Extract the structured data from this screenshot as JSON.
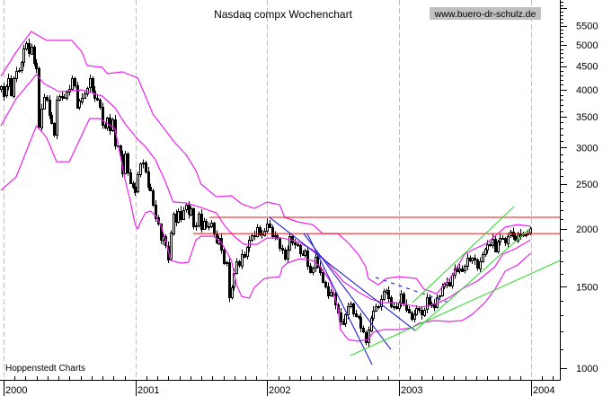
{
  "header": {
    "title": "Nasdaq compx Wochenchart",
    "source_url": "www.buero-dr-schulz.de"
  },
  "footer": {
    "credit": "Hoppenstedt Charts"
  },
  "chart_data": {
    "type": "candlestick",
    "title": "Nasdaq compx Wochenchart",
    "period": "weekly",
    "xlabel": "",
    "ylabel": "",
    "y_scale": "log",
    "ylim": [
      944,
      6254
    ],
    "xlim_weeks": [
      -0.355,
      220.6
    ],
    "x_tick_labels": [
      "2000",
      "2001",
      "2002",
      "2003",
      "2004"
    ],
    "x_tick_weeks": [
      1.06,
      53.1,
      105.15,
      157.2,
      209.24
    ],
    "months_per_year": 12,
    "y_tick_labels": [
      1000,
      1500,
      2000,
      2500,
      3000,
      3500,
      4000,
      4500,
      5000,
      5500
    ],
    "y_major_ticks": [
      1000,
      1500,
      2000,
      2500,
      3000,
      3500,
      4000,
      4500,
      5000,
      5500,
      6000
    ],
    "y_minor_tick_step": 100,
    "grid": {
      "vertical_year_lines": true,
      "horizontal": false,
      "color": "#c0c0c0"
    },
    "colors": {
      "up_body": "#ffffff",
      "down_body": "#000000",
      "outline": "#000000"
    },
    "close": [
      4069,
      3882,
      4064,
      4235,
      3887,
      4244,
      4395,
      4411,
      4590,
      4914,
      5048,
      4798,
      4963,
      4573,
      4446,
      3321,
      3643,
      3860,
      3816,
      3529,
      3390,
      3205,
      3813,
      3874,
      3860,
      3845,
      3966,
      4023,
      4246,
      4095,
      3663,
      3787,
      3849,
      3930,
      4042,
      4234,
      3979,
      3835,
      3803,
      3673,
      3361,
      3316,
      3483,
      3278,
      3451,
      3028,
      3027,
      2904,
      2645,
      2917,
      2654,
      2517,
      2471,
      2407,
      2626,
      2770,
      2781,
      2660,
      2470,
      2425,
      2262,
      2117,
      2052,
      1890,
      1928,
      1840,
      1720,
      1961,
      2163,
      2075,
      2192,
      2107,
      2199,
      2252,
      2149,
      2215,
      2028,
      2034,
      2160,
      2004,
      2084,
      2029,
      2029,
      2066,
      1956,
      1867,
      1916,
      1805,
      1687,
      1695,
      1423,
      1498,
      1605,
      1703,
      1671,
      1768,
      1745,
      1828,
      1898,
      1941,
      1930,
      2021,
      1953,
      1945,
      1987,
      2059,
      2022,
      1930,
      1937,
      1911,
      1818,
      1805,
      1724,
      1802,
      1929,
      1868,
      1851,
      1845,
      1770,
      1756,
      1796,
      1663,
      1613,
      1652,
      1741,
      1661,
      1615,
      1535,
      1504,
      1440,
      1463,
      1448,
      1373,
      1319,
      1262,
      1247,
      1306,
      1361,
      1380,
      1315,
      1295,
      1291,
      1221,
      1199,
      1139,
      1210,
      1287,
      1331,
      1360,
      1359,
      1411,
      1468,
      1479,
      1422,
      1362,
      1363,
      1348,
      1387,
      1448,
      1376,
      1342,
      1321,
      1282,
      1310,
      1349,
      1337,
      1305,
      1340,
      1422,
      1369,
      1383,
      1358,
      1425,
      1434,
      1502,
      1520,
      1538,
      1510,
      1596,
      1646,
      1627,
      1644,
      1625,
      1663,
      1733,
      1708,
      1731,
      1715,
      1644,
      1702,
      1765,
      1810,
      1858,
      1848,
      1905,
      1792,
      1880,
      1915,
      1912,
      1866,
      1932,
      1970,
      1930,
      1893,
      1960,
      1937,
      1949,
      1951,
      1960,
      2006
    ],
    "bollinger_bands": {
      "color": "#ee22ee",
      "upper": [
        [
          0,
          4277
        ],
        [
          6,
          4826
        ],
        [
          12,
          5348
        ],
        [
          18,
          5114
        ],
        [
          28,
          5114
        ],
        [
          32,
          4826
        ],
        [
          34,
          4512
        ],
        [
          40,
          4472
        ],
        [
          42,
          4334
        ],
        [
          48,
          4373
        ],
        [
          54,
          4240
        ],
        [
          56,
          3998
        ],
        [
          60,
          3544
        ],
        [
          63,
          3375
        ],
        [
          69,
          3058
        ],
        [
          73,
          2899
        ],
        [
          77,
          2674
        ],
        [
          79,
          2501
        ],
        [
          85,
          2349
        ],
        [
          91,
          2360
        ],
        [
          95,
          2266
        ],
        [
          100,
          2216
        ],
        [
          105,
          2287
        ],
        [
          110,
          2256
        ],
        [
          112,
          2120
        ],
        [
          117,
          2073
        ],
        [
          123,
          2045
        ],
        [
          127,
          1955
        ],
        [
          133,
          1955
        ],
        [
          137,
          1870
        ],
        [
          141,
          1764
        ],
        [
          144,
          1658
        ],
        [
          145,
          1564
        ],
        [
          149,
          1515
        ],
        [
          152,
          1564
        ],
        [
          157,
          1578
        ],
        [
          164,
          1564
        ],
        [
          167,
          1482
        ],
        [
          172,
          1449
        ],
        [
          174,
          1495
        ],
        [
          178,
          1585
        ],
        [
          183,
          1764
        ],
        [
          187,
          1813
        ],
        [
          191,
          1853
        ],
        [
          195,
          1929
        ],
        [
          199,
          2018
        ],
        [
          204,
          2045
        ],
        [
          209,
          2027
        ]
      ],
      "middle": [
        [
          0,
          3344
        ],
        [
          6,
          3824
        ],
        [
          14,
          4315
        ],
        [
          17,
          4126
        ],
        [
          23,
          3963
        ],
        [
          32,
          3998
        ],
        [
          40,
          3876
        ],
        [
          45,
          3658
        ],
        [
          49,
          3375
        ],
        [
          54,
          3127
        ],
        [
          57,
          3017
        ],
        [
          61,
          2821
        ],
        [
          65,
          2524
        ],
        [
          68,
          2287
        ],
        [
          73,
          2277
        ],
        [
          79,
          2226
        ],
        [
          85,
          2167
        ],
        [
          88,
          2045
        ],
        [
          92,
          1929
        ],
        [
          96,
          1853
        ],
        [
          101,
          1853
        ],
        [
          105,
          1912
        ],
        [
          111,
          1912
        ],
        [
          116,
          1887
        ],
        [
          119,
          1853
        ],
        [
          123,
          1805
        ],
        [
          127,
          1733
        ],
        [
          132,
          1614
        ],
        [
          135,
          1543
        ],
        [
          141,
          1462
        ],
        [
          146,
          1411
        ],
        [
          151,
          1386
        ],
        [
          156,
          1386
        ],
        [
          162,
          1367
        ],
        [
          166,
          1355
        ],
        [
          172,
          1380
        ],
        [
          177,
          1423
        ],
        [
          183,
          1495
        ],
        [
          188,
          1543
        ],
        [
          195,
          1658
        ],
        [
          198,
          1764
        ],
        [
          203,
          1813
        ],
        [
          209,
          1895
        ]
      ],
      "lower": [
        [
          0,
          2424
        ],
        [
          6,
          2591
        ],
        [
          14,
          3344
        ],
        [
          18,
          3155
        ],
        [
          22,
          2796
        ],
        [
          27,
          2796
        ],
        [
          35,
          3466
        ],
        [
          39,
          3466
        ],
        [
          45,
          3299
        ],
        [
          49,
          2557
        ],
        [
          51,
          2307
        ],
        [
          53,
          2045
        ],
        [
          54,
          2000
        ],
        [
          55,
          2064
        ],
        [
          57,
          2167
        ],
        [
          59,
          2187
        ],
        [
          61,
          2139
        ],
        [
          63,
          2045
        ],
        [
          65,
          1895
        ],
        [
          67,
          1710
        ],
        [
          71,
          1688
        ],
        [
          74,
          1695
        ],
        [
          77,
          1895
        ],
        [
          79,
          1929
        ],
        [
          84,
          1929
        ],
        [
          87,
          1870
        ],
        [
          91,
          1710
        ],
        [
          93,
          1515
        ],
        [
          95,
          1430
        ],
        [
          98,
          1417
        ],
        [
          100,
          1495
        ],
        [
          104,
          1564
        ],
        [
          110,
          1578
        ],
        [
          111,
          1651
        ],
        [
          113,
          1688
        ],
        [
          118,
          1725
        ],
        [
          123,
          1710
        ],
        [
          126,
          1658
        ],
        [
          130,
          1543
        ],
        [
          133,
          1349
        ],
        [
          134,
          1212
        ],
        [
          137,
          1154
        ],
        [
          141,
          1144
        ],
        [
          145,
          1154
        ],
        [
          147,
          1196
        ],
        [
          151,
          1212
        ],
        [
          157,
          1212
        ],
        [
          162,
          1223
        ],
        [
          165,
          1251
        ],
        [
          171,
          1268
        ],
        [
          177,
          1262
        ],
        [
          182,
          1268
        ],
        [
          186,
          1307
        ],
        [
          191,
          1386
        ],
        [
          195,
          1482
        ],
        [
          199,
          1621
        ],
        [
          204,
          1673
        ],
        [
          209,
          1772
        ]
      ]
    },
    "trend_lines": [
      {
        "name": "resistance-line-upper",
        "color": "#ee1111",
        "dashed": false,
        "points": [
          [
            82.3,
            2120
          ],
          [
            220.6,
            2120
          ]
        ]
      },
      {
        "name": "resistance-line-lower",
        "color": "#ee1111",
        "dashed": false,
        "points": [
          [
            75.9,
            1955
          ],
          [
            220.6,
            1955
          ]
        ]
      },
      {
        "name": "downtrend-line-1",
        "color": "#2020cc",
        "dashed": false,
        "points": [
          [
            106.0,
            2120
          ],
          [
            163.5,
            1206
          ]
        ]
      },
      {
        "name": "downtrend-line-2",
        "color": "#2020cc",
        "dashed": false,
        "points": [
          [
            119.5,
            1955
          ],
          [
            153.9,
            1098
          ]
        ]
      },
      {
        "name": "downtrend-line-3",
        "color": "#2020cc",
        "dashed": false,
        "points": [
          [
            120.9,
            1955
          ],
          [
            146.5,
            1018
          ]
        ]
      },
      {
        "name": "dashed-average-line",
        "color": "#2020cc",
        "dashed": true,
        "points": [
          [
            147.9,
            1571
          ],
          [
            177.0,
            1386
          ]
        ]
      },
      {
        "name": "uptrend-channel-upper",
        "color": "#33dd33",
        "dashed": false,
        "points": [
          [
            162.4,
            1386
          ],
          [
            202.5,
            2236
          ]
        ]
      },
      {
        "name": "uptrend-channel-lower",
        "color": "#33dd33",
        "dashed": false,
        "points": [
          [
            163.5,
            1206
          ],
          [
            208.9,
            2009
          ]
        ]
      },
      {
        "name": "long-term-support-line",
        "color": "#33dd33",
        "dashed": false,
        "points": [
          [
            137.9,
            1065
          ],
          [
            220.6,
            1710
          ]
        ]
      }
    ]
  }
}
